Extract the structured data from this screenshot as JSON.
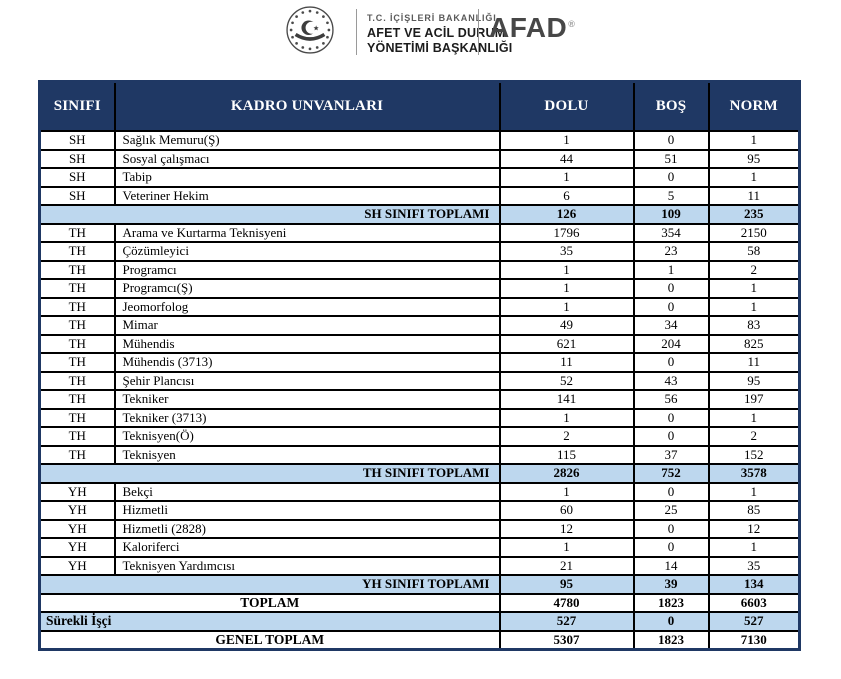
{
  "brand": {
    "ministry_line1": "T.C.  İÇİŞLERİ  BAKANLIĞI",
    "ministry_line2": "AFET VE ACİL DURUM",
    "ministry_line3": "YÖNETİMİ BAŞKANLIĞI",
    "logo_text": "AFAD",
    "registered_mark": "®",
    "emblem_icon": "government-seal"
  },
  "colors": {
    "header_bg": "#1F3864",
    "header_text": "#FFFFFF",
    "highlight_bg": "#BDD7EE",
    "grid_border": "#000000",
    "outer_border": "#1F3864"
  },
  "table": {
    "columns": [
      "SINIFI",
      "KADRO UNVANLARI",
      "DOLU",
      "BOŞ",
      "NORM"
    ],
    "rows": [
      {
        "type": "item",
        "sinifi": "SH",
        "unvan": "Sağlık Memuru(Ş)",
        "dolu": "1",
        "bos": "0",
        "norm": "1"
      },
      {
        "type": "item",
        "sinifi": "SH",
        "unvan": "Sosyal çalışmacı",
        "dolu": "44",
        "bos": "51",
        "norm": "95"
      },
      {
        "type": "item",
        "sinifi": "SH",
        "unvan": "Tabip",
        "dolu": "1",
        "bos": "0",
        "norm": "1"
      },
      {
        "type": "item",
        "sinifi": "SH",
        "unvan": "Veteriner Hekim",
        "dolu": "6",
        "bos": "5",
        "norm": "11"
      },
      {
        "type": "subtotal",
        "label": "SH SINIFI TOPLAMI",
        "dolu": "126",
        "bos": "109",
        "norm": "235"
      },
      {
        "type": "item",
        "sinifi": "TH",
        "unvan": "Arama ve Kurtarma Teknisyeni",
        "dolu": "1796",
        "bos": "354",
        "norm": "2150"
      },
      {
        "type": "item",
        "sinifi": "TH",
        "unvan": "Çözümleyici",
        "dolu": "35",
        "bos": "23",
        "norm": "58"
      },
      {
        "type": "item",
        "sinifi": "TH",
        "unvan": "Programcı",
        "dolu": "1",
        "bos": "1",
        "norm": "2"
      },
      {
        "type": "item",
        "sinifi": "TH",
        "unvan": "Programcı(Ş)",
        "dolu": "1",
        "bos": "0",
        "norm": "1"
      },
      {
        "type": "item",
        "sinifi": "TH",
        "unvan": "Jeomorfolog",
        "dolu": "1",
        "bos": "0",
        "norm": "1"
      },
      {
        "type": "item",
        "sinifi": "TH",
        "unvan": "Mimar",
        "dolu": "49",
        "bos": "34",
        "norm": "83"
      },
      {
        "type": "item",
        "sinifi": "TH",
        "unvan": "Mühendis",
        "dolu": "621",
        "bos": "204",
        "norm": "825"
      },
      {
        "type": "item",
        "sinifi": "TH",
        "unvan": "Mühendis (3713)",
        "dolu": "11",
        "bos": "0",
        "norm": "11"
      },
      {
        "type": "item",
        "sinifi": "TH",
        "unvan": "Şehir Plancısı",
        "dolu": "52",
        "bos": "43",
        "norm": "95"
      },
      {
        "type": "item",
        "sinifi": "TH",
        "unvan": "Tekniker",
        "dolu": "141",
        "bos": "56",
        "norm": "197"
      },
      {
        "type": "item",
        "sinifi": "TH",
        "unvan": "Tekniker (3713)",
        "dolu": "1",
        "bos": "0",
        "norm": "1"
      },
      {
        "type": "item",
        "sinifi": "TH",
        "unvan": "Teknisyen(Ö)",
        "dolu": "2",
        "bos": "0",
        "norm": "2"
      },
      {
        "type": "item",
        "sinifi": "TH",
        "unvan": "Teknisyen",
        "dolu": "115",
        "bos": "37",
        "norm": "152"
      },
      {
        "type": "subtotal",
        "label": "TH SINIFI TOPLAMI",
        "dolu": "2826",
        "bos": "752",
        "norm": "3578"
      },
      {
        "type": "item",
        "sinifi": "YH",
        "unvan": "Bekçi",
        "dolu": "1",
        "bos": "0",
        "norm": "1"
      },
      {
        "type": "item",
        "sinifi": "YH",
        "unvan": "Hizmetli",
        "dolu": "60",
        "bos": "25",
        "norm": "85"
      },
      {
        "type": "item",
        "sinifi": "YH",
        "unvan": "Hizmetli (2828)",
        "dolu": "12",
        "bos": "0",
        "norm": "12"
      },
      {
        "type": "item",
        "sinifi": "YH",
        "unvan": "Kaloriferci",
        "dolu": "1",
        "bos": "0",
        "norm": "1"
      },
      {
        "type": "item",
        "sinifi": "YH",
        "unvan": "Teknisyen Yardımcısı",
        "dolu": "21",
        "bos": "14",
        "norm": "35"
      },
      {
        "type": "subtotal",
        "label": "YH SINIFI TOPLAMI",
        "dolu": "95",
        "bos": "39",
        "norm": "134"
      },
      {
        "type": "total",
        "label": "TOPLAM",
        "dolu": "4780",
        "bos": "1823",
        "norm": "6603"
      },
      {
        "type": "worker",
        "label": "Sürekli İşçi",
        "dolu": "527",
        "bos": "0",
        "norm": "527"
      },
      {
        "type": "grandtotal",
        "label": "GENEL TOPLAM",
        "dolu": "5307",
        "bos": "1823",
        "norm": "7130"
      }
    ]
  }
}
